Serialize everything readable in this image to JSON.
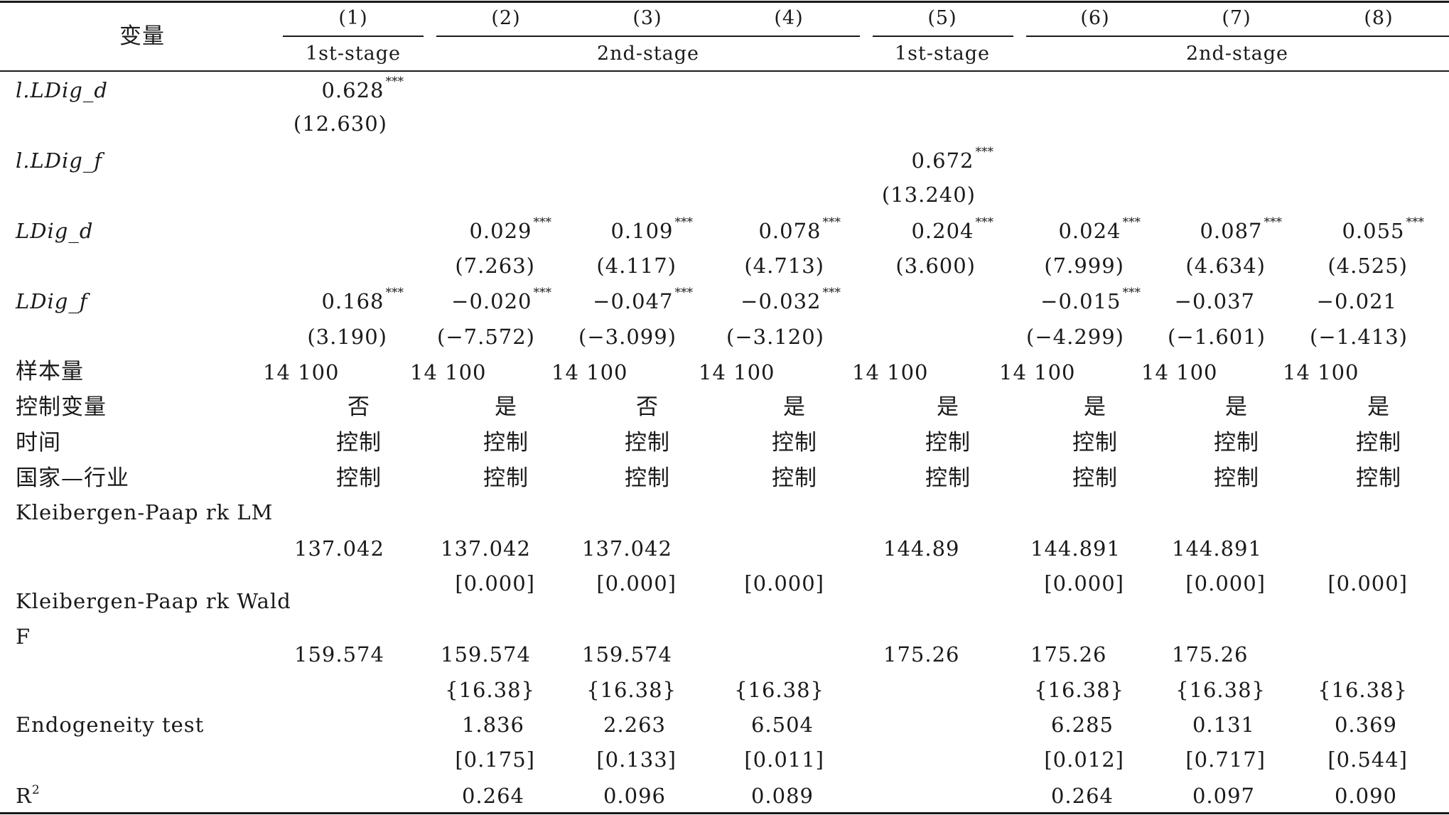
{
  "header": {
    "var_label": "变量",
    "columns": [
      "(1)",
      "(2)",
      "(3)",
      "(4)",
      "(5)",
      "(6)",
      "(7)",
      "(8)"
    ],
    "stages": [
      "1st-stage",
      "2nd-stage",
      "1st-stage",
      "2nd-stage"
    ]
  },
  "rows": {
    "l_ldig_d": {
      "label": "l.LDig_d",
      "c1": "0.628",
      "c1_t": "(12.630)"
    },
    "l_ldig_f": {
      "label": "l.LDig_f",
      "c5": "0.672",
      "c5_t": "(13.240)"
    },
    "ldig_d": {
      "label": "LDig_d",
      "coef": [
        "0.029",
        "0.109",
        "0.078",
        "0.204",
        "0.024",
        "0.087",
        "0.055"
      ],
      "t": [
        "(7.263)",
        "(4.117)",
        "(4.713)",
        "(3.600)",
        "(7.999)",
        "(4.634)",
        "(4.525)"
      ]
    },
    "ldig_f": {
      "label": "LDig_f",
      "coef": [
        "0.168",
        "−0.020",
        "−0.047",
        "−0.032",
        "−0.015",
        "−0.037",
        "−0.021"
      ],
      "t": [
        "(3.190)",
        "(−7.572)",
        "(−3.099)",
        "(−3.120)",
        "(−4.299)",
        "(−1.601)",
        "(−1.413)"
      ]
    },
    "stars": "***",
    "n": {
      "label": "样本量",
      "values": [
        "14 100",
        "14 100",
        "14 100",
        "14 100",
        "14 100",
        "14 100",
        "14 100",
        "14 100"
      ]
    },
    "controls": {
      "label": "控制变量",
      "values": [
        "否",
        "是",
        "否",
        "是",
        "是",
        "是",
        "是",
        "是"
      ]
    },
    "time": {
      "label": "时间",
      "value": "控制"
    },
    "country_industry": {
      "label": "国家—行业",
      "value": "控制"
    },
    "kp_lm": {
      "label": "Kleibergen-Paap rk LM",
      "values": [
        "137.042",
        "137.042",
        "137.042",
        "144.89",
        "144.891",
        "144.891"
      ],
      "p": "[0.000]"
    },
    "kp_wald": {
      "label_line1": "Kleibergen-Paap rk Wald",
      "label_line2": "F",
      "values": [
        "159.574",
        "159.574",
        "159.574",
        "175.26",
        "175.26",
        "175.26"
      ],
      "cv": "{16.38}"
    },
    "endog": {
      "label": "Endogeneity test",
      "values": [
        "1.836",
        "2.263",
        "6.504",
        "6.285",
        "0.131",
        "0.369"
      ],
      "p": [
        "[0.175]",
        "[0.133]",
        "[0.011]",
        "[0.012]",
        "[0.717]",
        "[0.544]"
      ]
    },
    "r2": {
      "label": "R",
      "sup": "2",
      "values": [
        "0.264",
        "0.096",
        "0.089",
        "0.264",
        "0.097",
        "0.090"
      ]
    }
  }
}
